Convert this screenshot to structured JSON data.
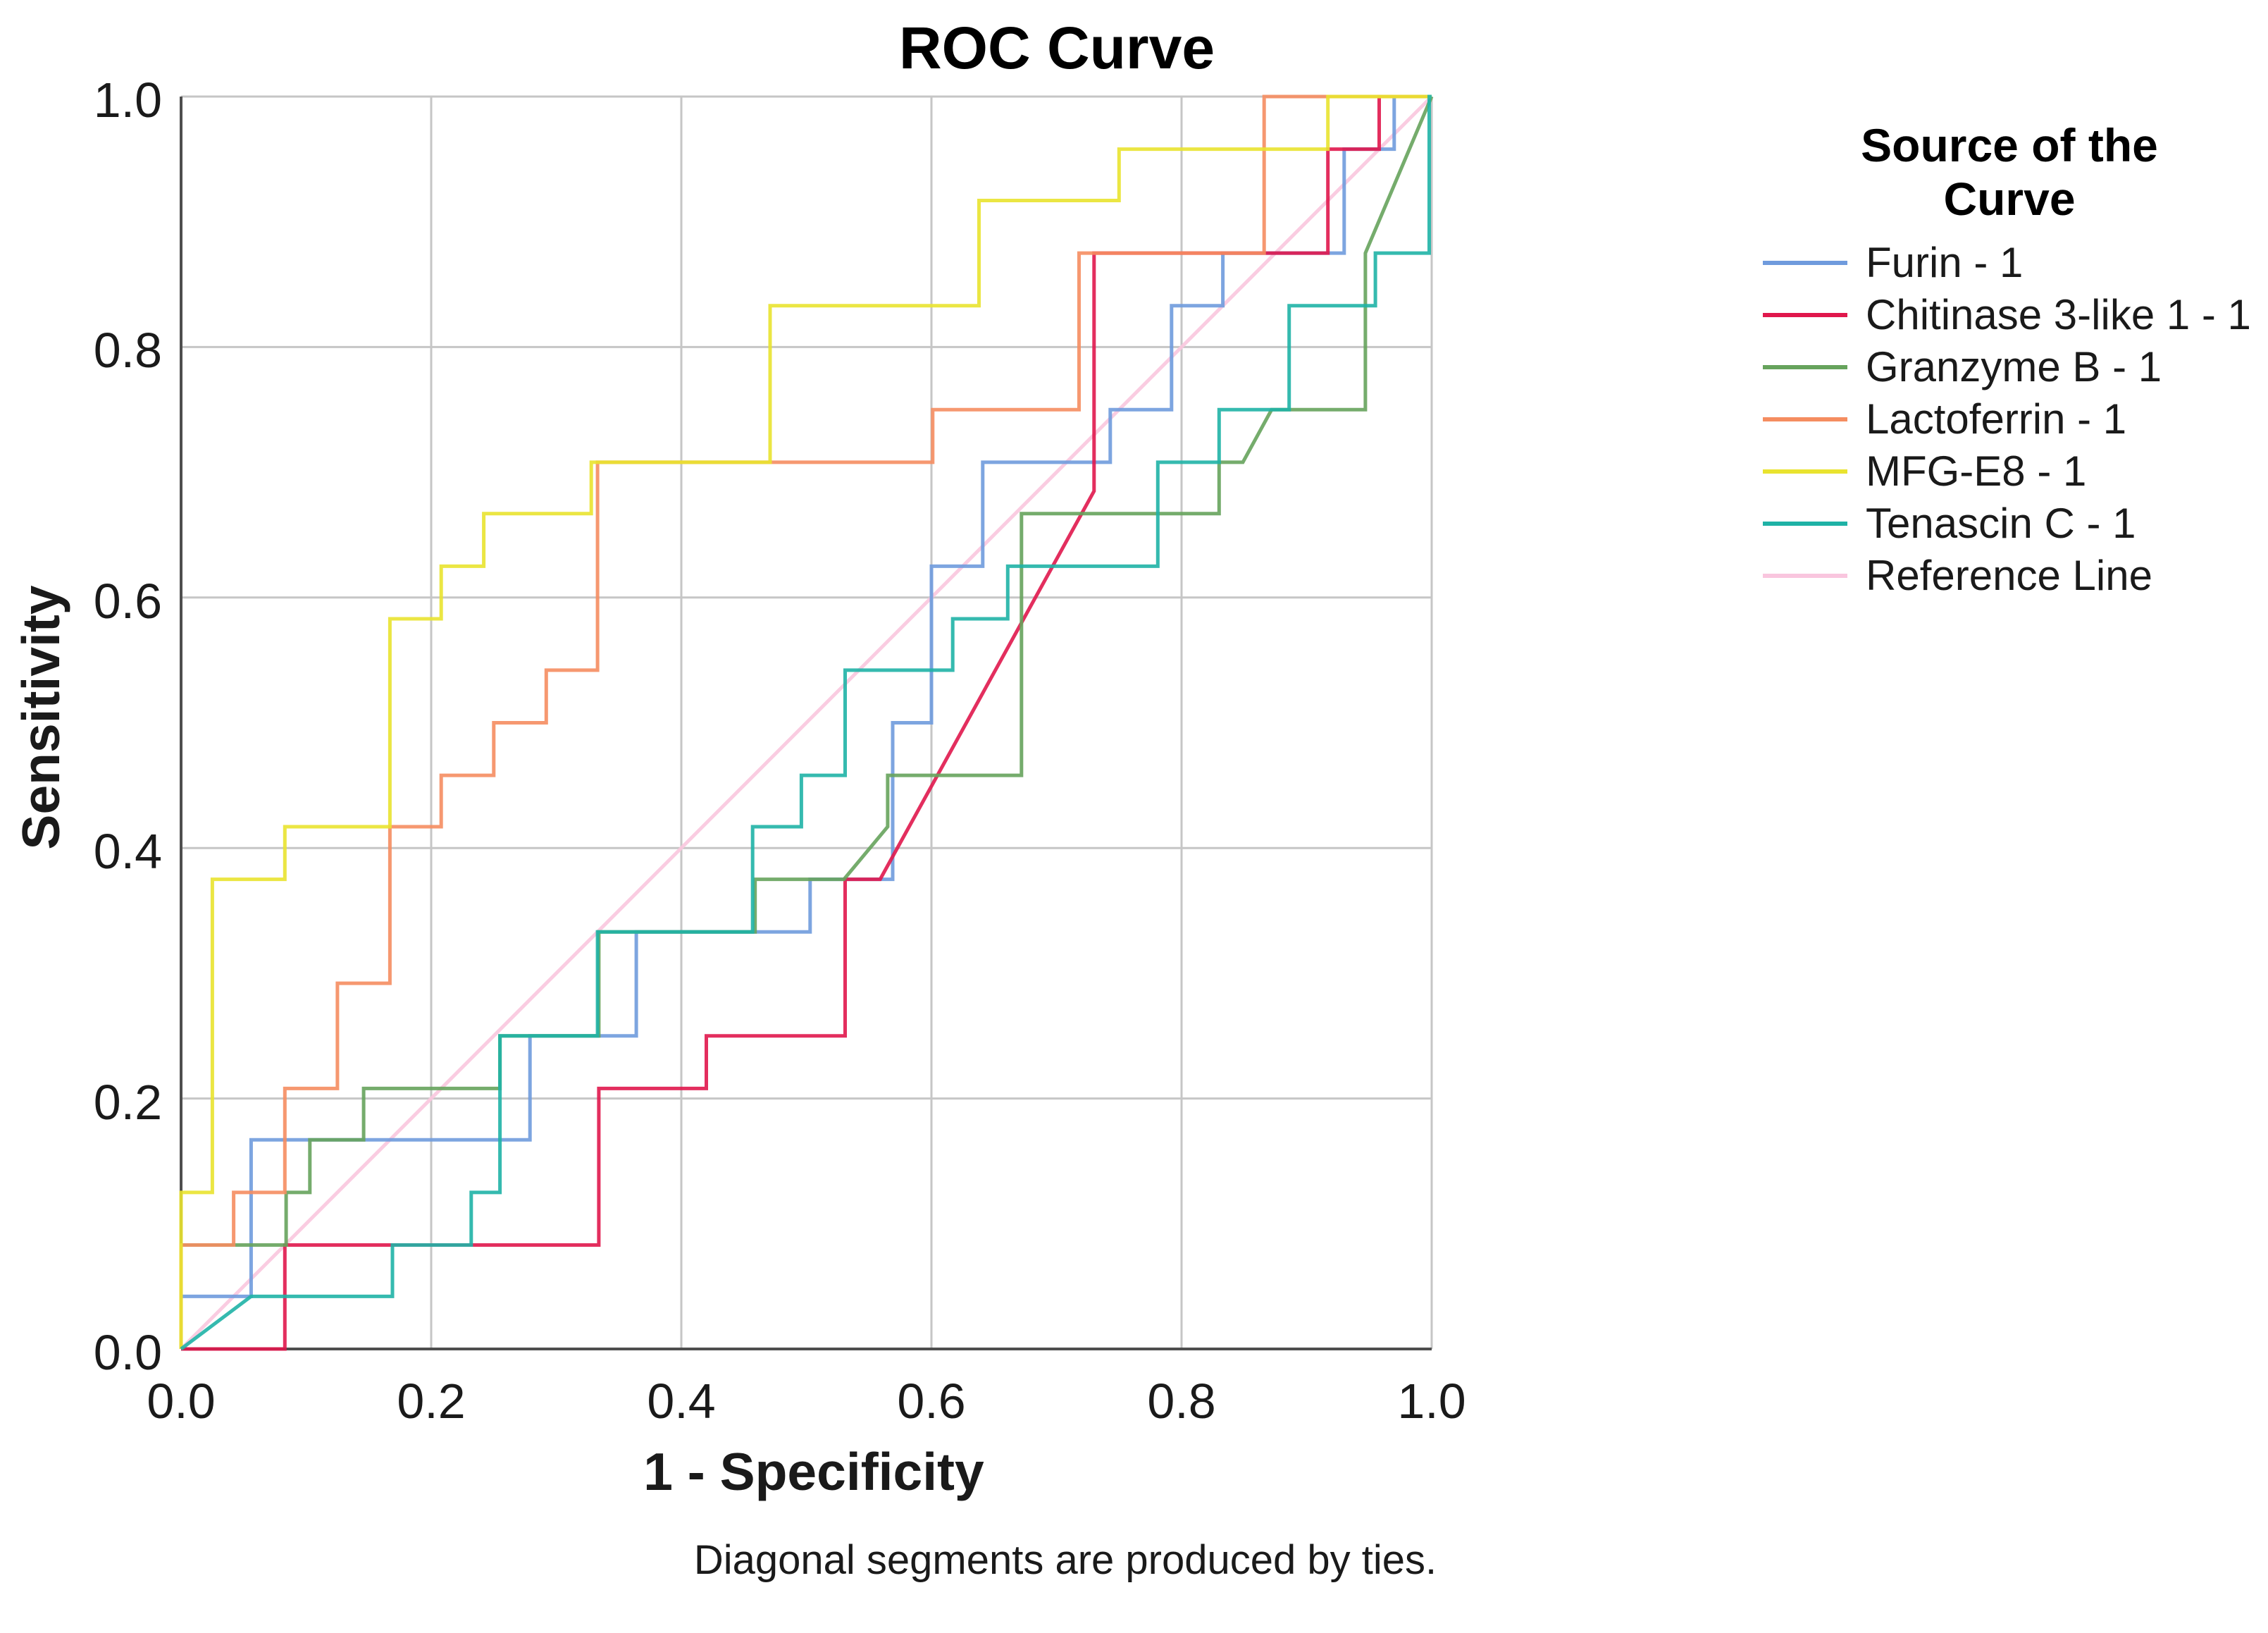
{
  "title": "ROC Curve",
  "footnote": "Diagonal segments are produced by ties.",
  "axes": {
    "x_label": "1 - Specificity",
    "y_label": "Sensitivity",
    "x_ticks": [
      "0.0",
      "0.2",
      "0.4",
      "0.6",
      "0.8",
      "1.0"
    ],
    "y_ticks": [
      "0.0",
      "0.2",
      "0.4",
      "0.6",
      "0.8",
      "1.0"
    ]
  },
  "legend": {
    "title_line1": "Source of the",
    "title_line2": "Curve",
    "items": [
      {
        "label": "Furin - 1",
        "color": "#6f9bdd"
      },
      {
        "label": "Chitinase 3-like 1 - 1",
        "color": "#e0174c"
      },
      {
        "label": "Granzyme B - 1",
        "color": "#66a35c"
      },
      {
        "label": "Lactoferrin - 1",
        "color": "#f58d60"
      },
      {
        "label": "MFG-E8 - 1",
        "color": "#e9e32f"
      },
      {
        "label": "Tenascin C - 1",
        "color": "#1fb2a6"
      },
      {
        "label": "Reference Line",
        "color": "#f9c6de"
      }
    ]
  },
  "chart_data": {
    "type": "line",
    "title": "ROC Curve",
    "xlabel": "1 - Specificity",
    "ylabel": "Sensitivity",
    "xlim": [
      0,
      1
    ],
    "ylim": [
      0,
      1
    ],
    "grid": true,
    "grid_step": 0.2,
    "legend_position": "right",
    "colors": {
      "grid": "#c6c6c6",
      "axis": "#4e4e4e",
      "text": "#1a1a1a"
    },
    "series": [
      {
        "name": "Furin - 1",
        "color": "#6f9bdd",
        "points": [
          [
            0,
            0
          ],
          [
            0,
            0.042
          ],
          [
            0.056,
            0.042
          ],
          [
            0.056,
            0.167
          ],
          [
            0.279,
            0.167
          ],
          [
            0.279,
            0.25
          ],
          [
            0.364,
            0.25
          ],
          [
            0.364,
            0.333
          ],
          [
            0.503,
            0.333
          ],
          [
            0.503,
            0.375
          ],
          [
            0.569,
            0.375
          ],
          [
            0.569,
            0.5
          ],
          [
            0.6,
            0.5
          ],
          [
            0.6,
            0.625
          ],
          [
            0.641,
            0.625
          ],
          [
            0.641,
            0.708
          ],
          [
            0.743,
            0.708
          ],
          [
            0.743,
            0.75
          ],
          [
            0.792,
            0.75
          ],
          [
            0.792,
            0.833
          ],
          [
            0.833,
            0.833
          ],
          [
            0.833,
            0.875
          ],
          [
            0.93,
            0.875
          ],
          [
            0.93,
            0.958
          ],
          [
            0.97,
            0.958
          ],
          [
            0.97,
            1
          ],
          [
            1,
            1
          ]
        ]
      },
      {
        "name": "Chitinase 3-like 1 - 1",
        "color": "#e0174c",
        "points": [
          [
            0,
            0
          ],
          [
            0.083,
            0
          ],
          [
            0.083,
            0.083
          ],
          [
            0.334,
            0.083
          ],
          [
            0.334,
            0.208
          ],
          [
            0.42,
            0.208
          ],
          [
            0.42,
            0.25
          ],
          [
            0.531,
            0.25
          ],
          [
            0.531,
            0.375
          ],
          [
            0.559,
            0.375
          ],
          [
            0.73,
            0.685
          ],
          [
            0.73,
            0.875
          ],
          [
            0.917,
            0.875
          ],
          [
            0.917,
            0.958
          ],
          [
            0.958,
            0.958
          ],
          [
            0.958,
            1
          ],
          [
            1,
            1
          ]
        ]
      },
      {
        "name": "Granzyme B - 1",
        "color": "#66a35c",
        "points": [
          [
            0,
            0
          ],
          [
            0,
            0.083
          ],
          [
            0.084,
            0.083
          ],
          [
            0.084,
            0.125
          ],
          [
            0.103,
            0.125
          ],
          [
            0.103,
            0.167
          ],
          [
            0.146,
            0.167
          ],
          [
            0.146,
            0.208
          ],
          [
            0.255,
            0.208
          ],
          [
            0.255,
            0.25
          ],
          [
            0.334,
            0.25
          ],
          [
            0.334,
            0.333
          ],
          [
            0.459,
            0.333
          ],
          [
            0.459,
            0.375
          ],
          [
            0.53,
            0.375
          ],
          [
            0.565,
            0.417
          ],
          [
            0.565,
            0.458
          ],
          [
            0.672,
            0.458
          ],
          [
            0.672,
            0.667
          ],
          [
            0.83,
            0.667
          ],
          [
            0.83,
            0.708
          ],
          [
            0.849,
            0.708
          ],
          [
            0.872,
            0.75
          ],
          [
            0.947,
            0.75
          ],
          [
            0.947,
            0.875
          ],
          [
            1,
            1
          ]
        ]
      },
      {
        "name": "Lactoferrin - 1",
        "color": "#f58d60",
        "points": [
          [
            0,
            0
          ],
          [
            0,
            0.083
          ],
          [
            0.042,
            0.083
          ],
          [
            0.042,
            0.125
          ],
          [
            0.083,
            0.125
          ],
          [
            0.083,
            0.208
          ],
          [
            0.125,
            0.208
          ],
          [
            0.125,
            0.292
          ],
          [
            0.167,
            0.292
          ],
          [
            0.167,
            0.417
          ],
          [
            0.208,
            0.417
          ],
          [
            0.208,
            0.458
          ],
          [
            0.25,
            0.458
          ],
          [
            0.25,
            0.5
          ],
          [
            0.292,
            0.5
          ],
          [
            0.292,
            0.542
          ],
          [
            0.333,
            0.542
          ],
          [
            0.333,
            0.708
          ],
          [
            0.601,
            0.708
          ],
          [
            0.601,
            0.75
          ],
          [
            0.718,
            0.75
          ],
          [
            0.718,
            0.875
          ],
          [
            0.866,
            0.875
          ],
          [
            0.866,
            1
          ],
          [
            1,
            1
          ]
        ]
      },
      {
        "name": "MFG-E8 - 1",
        "color": "#e9e32f",
        "points": [
          [
            0,
            0
          ],
          [
            0,
            0.125
          ],
          [
            0.025,
            0.125
          ],
          [
            0.025,
            0.375
          ],
          [
            0.083,
            0.375
          ],
          [
            0.083,
            0.417
          ],
          [
            0.167,
            0.417
          ],
          [
            0.167,
            0.583
          ],
          [
            0.208,
            0.583
          ],
          [
            0.208,
            0.625
          ],
          [
            0.242,
            0.625
          ],
          [
            0.242,
            0.667
          ],
          [
            0.328,
            0.667
          ],
          [
            0.328,
            0.708
          ],
          [
            0.471,
            0.708
          ],
          [
            0.471,
            0.833
          ],
          [
            0.638,
            0.833
          ],
          [
            0.638,
            0.917
          ],
          [
            0.75,
            0.917
          ],
          [
            0.75,
            0.958
          ],
          [
            0.917,
            0.958
          ],
          [
            0.917,
            1
          ],
          [
            1,
            1
          ]
        ]
      },
      {
        "name": "Tenascin C - 1",
        "color": "#1fb2a6",
        "points": [
          [
            0,
            0
          ],
          [
            0.056,
            0.042
          ],
          [
            0.169,
            0.042
          ],
          [
            0.169,
            0.083
          ],
          [
            0.232,
            0.083
          ],
          [
            0.232,
            0.125
          ],
          [
            0.255,
            0.125
          ],
          [
            0.255,
            0.25
          ],
          [
            0.333,
            0.25
          ],
          [
            0.333,
            0.333
          ],
          [
            0.457,
            0.333
          ],
          [
            0.457,
            0.417
          ],
          [
            0.496,
            0.417
          ],
          [
            0.496,
            0.458
          ],
          [
            0.531,
            0.458
          ],
          [
            0.531,
            0.542
          ],
          [
            0.617,
            0.542
          ],
          [
            0.617,
            0.583
          ],
          [
            0.661,
            0.583
          ],
          [
            0.661,
            0.625
          ],
          [
            0.781,
            0.625
          ],
          [
            0.781,
            0.708
          ],
          [
            0.83,
            0.708
          ],
          [
            0.83,
            0.75
          ],
          [
            0.886,
            0.75
          ],
          [
            0.886,
            0.833
          ],
          [
            0.955,
            0.833
          ],
          [
            0.955,
            0.875
          ],
          [
            0.998,
            0.875
          ],
          [
            0.998,
            1
          ],
          [
            1,
            1
          ]
        ]
      },
      {
        "name": "Reference Line",
        "color": "#f9c6de",
        "points": [
          [
            0,
            0
          ],
          [
            1,
            1
          ]
        ]
      }
    ]
  }
}
